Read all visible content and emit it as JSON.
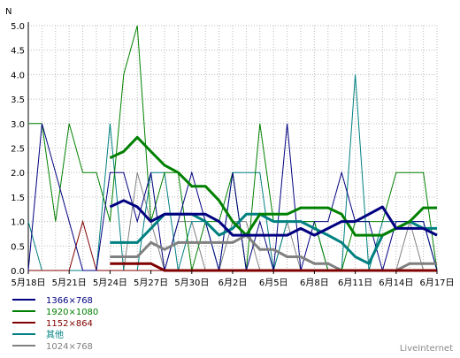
{
  "chart_data": {
    "type": "line",
    "ylabel": "N",
    "ylim": [
      0,
      5
    ],
    "y_ticks": [
      "0.0",
      "0.5",
      "1.0",
      "1.5",
      "2.0",
      "2.5",
      "3.0",
      "3.5",
      "4.0",
      "4.5",
      "5.0"
    ],
    "x_tick_labels": [
      "5月18日",
      "5月21日",
      "5月24日",
      "5月27日",
      "5月30日",
      "6月2日",
      "6月5日",
      "6月8日",
      "6月11日",
      "6月14日",
      "6月17日"
    ],
    "x_tick_index": [
      0,
      3,
      6,
      9,
      12,
      15,
      18,
      21,
      24,
      27,
      30
    ],
    "x_count": 31,
    "grid": true,
    "legend_position": "bottom-left",
    "credit": "LiveInternet",
    "series": [
      {
        "name": "1366×768",
        "color": "#000080",
        "values": [
          0,
          3,
          2,
          1,
          0,
          0,
          2,
          2,
          1,
          2,
          0,
          1,
          2,
          1,
          0,
          2,
          0,
          1,
          0,
          3,
          0,
          1,
          1,
          2,
          1,
          1,
          0,
          1,
          1,
          1,
          0
        ],
        "avg": [
          null,
          null,
          null,
          null,
          null,
          null,
          1.3,
          1.43,
          1.3,
          1.0,
          1.15,
          1.15,
          1.15,
          1.15,
          1.0,
          0.72,
          0.72,
          0.72,
          0.72,
          0.72,
          0.86,
          0.72,
          0.86,
          1.0,
          1.0,
          1.15,
          1.3,
          0.86,
          0.86,
          0.86,
          0.72
        ]
      },
      {
        "name": "1920×1080",
        "color": "#008000",
        "values": [
          3,
          3,
          1,
          3,
          2,
          2,
          1,
          4,
          5,
          1,
          2,
          2,
          0,
          1,
          1,
          2,
          0,
          3,
          1,
          1,
          1,
          1,
          0,
          0,
          1,
          1,
          1,
          2,
          2,
          2,
          0
        ],
        "avg": [
          null,
          null,
          null,
          null,
          null,
          null,
          2.3,
          2.43,
          2.72,
          2.43,
          2.15,
          2.0,
          1.72,
          1.72,
          1.43,
          1.0,
          0.72,
          1.15,
          1.15,
          1.15,
          1.28,
          1.28,
          1.28,
          1.15,
          0.72,
          0.72,
          0.72,
          0.86,
          1.0,
          1.28,
          1.28
        ]
      },
      {
        "name": "1152×864",
        "color": "#800000",
        "values": [
          0,
          0,
          0,
          0,
          1,
          0,
          0,
          0,
          0,
          0,
          0,
          0,
          0,
          0,
          0,
          0,
          0,
          0,
          0,
          0,
          0,
          0,
          0,
          0,
          0,
          0,
          0,
          0,
          0,
          0,
          0
        ],
        "avg": [
          null,
          null,
          null,
          null,
          null,
          null,
          0.14,
          0.14,
          0.14,
          0.14,
          0.0,
          0.0,
          0.0,
          0.0,
          0.0,
          0.0,
          0.0,
          0.0,
          0.0,
          0.0,
          0.0,
          0.0,
          0.0,
          0.0,
          0.0,
          0.0,
          0.0,
          0.0,
          0.0,
          0.0,
          0.0
        ]
      },
      {
        "name": "其他",
        "color": "#008080",
        "values": [
          1,
          0,
          0,
          0,
          0,
          0,
          3,
          0,
          0,
          2,
          2,
          0,
          1,
          1,
          0,
          2,
          2,
          2,
          0,
          1,
          1,
          1,
          0,
          0,
          4,
          0,
          1,
          1,
          1,
          1,
          0
        ],
        "avg": [
          null,
          null,
          null,
          null,
          null,
          null,
          0.57,
          0.57,
          0.57,
          0.86,
          1.15,
          1.15,
          1.15,
          1.0,
          0.72,
          0.86,
          1.15,
          1.15,
          1.0,
          1.0,
          1.0,
          0.86,
          0.72,
          0.57,
          0.28,
          0.14,
          0.72,
          0.86,
          1.0,
          0.86,
          0.86
        ]
      },
      {
        "name": "1024×768",
        "color": "#808080",
        "values": [
          0,
          0,
          0,
          0,
          0,
          0,
          0,
          0,
          2,
          1,
          0,
          1,
          1,
          0,
          0,
          1,
          1,
          0,
          0,
          1,
          0,
          0,
          0,
          0,
          0,
          0,
          0,
          0,
          1,
          0,
          0
        ],
        "avg": [
          null,
          null,
          null,
          null,
          null,
          null,
          0.28,
          0.28,
          0.28,
          0.57,
          0.43,
          0.57,
          0.57,
          0.57,
          0.57,
          0.57,
          0.72,
          0.43,
          0.43,
          0.28,
          0.28,
          0.14,
          0.14,
          0.0,
          0.0,
          0.0,
          0.0,
          0.0,
          0.14,
          0.14,
          0.14
        ]
      }
    ]
  }
}
